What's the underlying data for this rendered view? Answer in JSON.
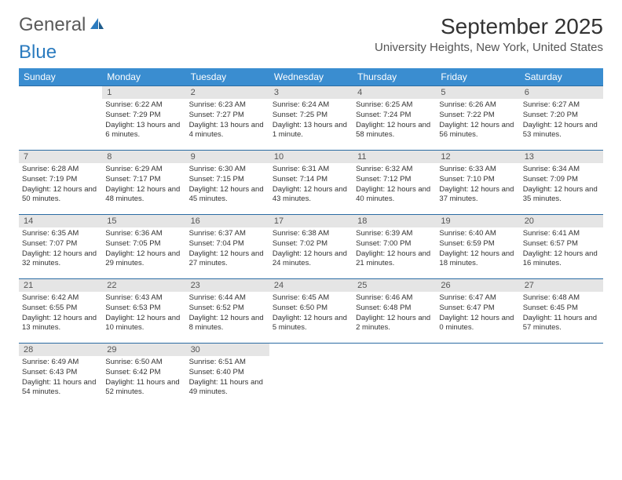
{
  "logo": {
    "text1": "General",
    "text2": "Blue"
  },
  "title": "September 2025",
  "location": "University Heights, New York, United States",
  "weekdays": [
    "Sunday",
    "Monday",
    "Tuesday",
    "Wednesday",
    "Thursday",
    "Friday",
    "Saturday"
  ],
  "colors": {
    "header_bg": "#3a8dd0",
    "header_text": "#ffffff",
    "daynum_bg": "#e5e5e5",
    "border": "#2b6ca3",
    "logo_gray": "#5a5a5a",
    "logo_blue": "#2b7bbf"
  },
  "weeks": [
    [
      {
        "day": "",
        "sunrise": "",
        "sunset": "",
        "daylight": "",
        "empty": true
      },
      {
        "day": "1",
        "sunrise": "Sunrise: 6:22 AM",
        "sunset": "Sunset: 7:29 PM",
        "daylight": "Daylight: 13 hours and 6 minutes."
      },
      {
        "day": "2",
        "sunrise": "Sunrise: 6:23 AM",
        "sunset": "Sunset: 7:27 PM",
        "daylight": "Daylight: 13 hours and 4 minutes."
      },
      {
        "day": "3",
        "sunrise": "Sunrise: 6:24 AM",
        "sunset": "Sunset: 7:25 PM",
        "daylight": "Daylight: 13 hours and 1 minute."
      },
      {
        "day": "4",
        "sunrise": "Sunrise: 6:25 AM",
        "sunset": "Sunset: 7:24 PM",
        "daylight": "Daylight: 12 hours and 58 minutes."
      },
      {
        "day": "5",
        "sunrise": "Sunrise: 6:26 AM",
        "sunset": "Sunset: 7:22 PM",
        "daylight": "Daylight: 12 hours and 56 minutes."
      },
      {
        "day": "6",
        "sunrise": "Sunrise: 6:27 AM",
        "sunset": "Sunset: 7:20 PM",
        "daylight": "Daylight: 12 hours and 53 minutes."
      }
    ],
    [
      {
        "day": "7",
        "sunrise": "Sunrise: 6:28 AM",
        "sunset": "Sunset: 7:19 PM",
        "daylight": "Daylight: 12 hours and 50 minutes."
      },
      {
        "day": "8",
        "sunrise": "Sunrise: 6:29 AM",
        "sunset": "Sunset: 7:17 PM",
        "daylight": "Daylight: 12 hours and 48 minutes."
      },
      {
        "day": "9",
        "sunrise": "Sunrise: 6:30 AM",
        "sunset": "Sunset: 7:15 PM",
        "daylight": "Daylight: 12 hours and 45 minutes."
      },
      {
        "day": "10",
        "sunrise": "Sunrise: 6:31 AM",
        "sunset": "Sunset: 7:14 PM",
        "daylight": "Daylight: 12 hours and 43 minutes."
      },
      {
        "day": "11",
        "sunrise": "Sunrise: 6:32 AM",
        "sunset": "Sunset: 7:12 PM",
        "daylight": "Daylight: 12 hours and 40 minutes."
      },
      {
        "day": "12",
        "sunrise": "Sunrise: 6:33 AM",
        "sunset": "Sunset: 7:10 PM",
        "daylight": "Daylight: 12 hours and 37 minutes."
      },
      {
        "day": "13",
        "sunrise": "Sunrise: 6:34 AM",
        "sunset": "Sunset: 7:09 PM",
        "daylight": "Daylight: 12 hours and 35 minutes."
      }
    ],
    [
      {
        "day": "14",
        "sunrise": "Sunrise: 6:35 AM",
        "sunset": "Sunset: 7:07 PM",
        "daylight": "Daylight: 12 hours and 32 minutes."
      },
      {
        "day": "15",
        "sunrise": "Sunrise: 6:36 AM",
        "sunset": "Sunset: 7:05 PM",
        "daylight": "Daylight: 12 hours and 29 minutes."
      },
      {
        "day": "16",
        "sunrise": "Sunrise: 6:37 AM",
        "sunset": "Sunset: 7:04 PM",
        "daylight": "Daylight: 12 hours and 27 minutes."
      },
      {
        "day": "17",
        "sunrise": "Sunrise: 6:38 AM",
        "sunset": "Sunset: 7:02 PM",
        "daylight": "Daylight: 12 hours and 24 minutes."
      },
      {
        "day": "18",
        "sunrise": "Sunrise: 6:39 AM",
        "sunset": "Sunset: 7:00 PM",
        "daylight": "Daylight: 12 hours and 21 minutes."
      },
      {
        "day": "19",
        "sunrise": "Sunrise: 6:40 AM",
        "sunset": "Sunset: 6:59 PM",
        "daylight": "Daylight: 12 hours and 18 minutes."
      },
      {
        "day": "20",
        "sunrise": "Sunrise: 6:41 AM",
        "sunset": "Sunset: 6:57 PM",
        "daylight": "Daylight: 12 hours and 16 minutes."
      }
    ],
    [
      {
        "day": "21",
        "sunrise": "Sunrise: 6:42 AM",
        "sunset": "Sunset: 6:55 PM",
        "daylight": "Daylight: 12 hours and 13 minutes."
      },
      {
        "day": "22",
        "sunrise": "Sunrise: 6:43 AM",
        "sunset": "Sunset: 6:53 PM",
        "daylight": "Daylight: 12 hours and 10 minutes."
      },
      {
        "day": "23",
        "sunrise": "Sunrise: 6:44 AM",
        "sunset": "Sunset: 6:52 PM",
        "daylight": "Daylight: 12 hours and 8 minutes."
      },
      {
        "day": "24",
        "sunrise": "Sunrise: 6:45 AM",
        "sunset": "Sunset: 6:50 PM",
        "daylight": "Daylight: 12 hours and 5 minutes."
      },
      {
        "day": "25",
        "sunrise": "Sunrise: 6:46 AM",
        "sunset": "Sunset: 6:48 PM",
        "daylight": "Daylight: 12 hours and 2 minutes."
      },
      {
        "day": "26",
        "sunrise": "Sunrise: 6:47 AM",
        "sunset": "Sunset: 6:47 PM",
        "daylight": "Daylight: 12 hours and 0 minutes."
      },
      {
        "day": "27",
        "sunrise": "Sunrise: 6:48 AM",
        "sunset": "Sunset: 6:45 PM",
        "daylight": "Daylight: 11 hours and 57 minutes."
      }
    ],
    [
      {
        "day": "28",
        "sunrise": "Sunrise: 6:49 AM",
        "sunset": "Sunset: 6:43 PM",
        "daylight": "Daylight: 11 hours and 54 minutes."
      },
      {
        "day": "29",
        "sunrise": "Sunrise: 6:50 AM",
        "sunset": "Sunset: 6:42 PM",
        "daylight": "Daylight: 11 hours and 52 minutes."
      },
      {
        "day": "30",
        "sunrise": "Sunrise: 6:51 AM",
        "sunset": "Sunset: 6:40 PM",
        "daylight": "Daylight: 11 hours and 49 minutes."
      },
      {
        "day": "",
        "sunrise": "",
        "sunset": "",
        "daylight": "",
        "empty": true
      },
      {
        "day": "",
        "sunrise": "",
        "sunset": "",
        "daylight": "",
        "empty": true
      },
      {
        "day": "",
        "sunrise": "",
        "sunset": "",
        "daylight": "",
        "empty": true
      },
      {
        "day": "",
        "sunrise": "",
        "sunset": "",
        "daylight": "",
        "empty": true
      }
    ]
  ]
}
